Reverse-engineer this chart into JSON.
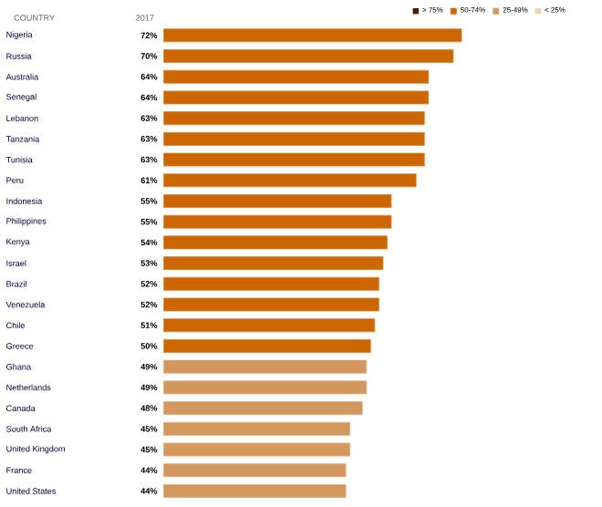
{
  "chart_data": {
    "type": "bar",
    "orientation": "horizontal",
    "ylabel": "COUNTRY",
    "xlabel": "2017",
    "categories": [
      "Nigeria",
      "Russia",
      "Australia",
      "Senegal",
      "Lebanon",
      "Tanzania",
      "Tunisia",
      "Peru",
      "Indonesia",
      "Philippines",
      "Kenya",
      "Israel",
      "Brazil",
      "Venezuela",
      "Chile",
      "Greece",
      "Ghana",
      "Netherlands",
      "Canada",
      "South Africa",
      "United Kingdom",
      "France",
      "United States"
    ],
    "tick_labels": "y",
    "legend": "top right",
    "series": [
      {
        "name": "> 75%",
        "color": "#4d1f00",
        "values": [
          null,
          null,
          null,
          null,
          null,
          null,
          null,
          null,
          null,
          null,
          null,
          null,
          null,
          null,
          null,
          null,
          null,
          null,
          null,
          null,
          null,
          null,
          null
        ],
        "value_labels": [
          null,
          null,
          null,
          null,
          null,
          null,
          null,
          null,
          null,
          null,
          null,
          null,
          null,
          null,
          null,
          null,
          null,
          null,
          null,
          null,
          null,
          null,
          null
        ]
      },
      {
        "name": "50-74%",
        "color": "#cc6600",
        "values": [
          72,
          70,
          64,
          64,
          63,
          63,
          63,
          61,
          55,
          55,
          54,
          53,
          52,
          52,
          51,
          50,
          null,
          null,
          null,
          null,
          null,
          null,
          null
        ],
        "value_labels": [
          "72%",
          "70%",
          "64%",
          "64%",
          "63%",
          "63%",
          "63%",
          "61%",
          "55%",
          "55%",
          "54%",
          "53%",
          "52%",
          "52%",
          "51%",
          "50%",
          null,
          null,
          null,
          null,
          null,
          null,
          null
        ]
      },
      {
        "name": "25-49%",
        "color": "#d4975e",
        "values": [
          null,
          null,
          null,
          null,
          null,
          null,
          null,
          null,
          null,
          null,
          null,
          null,
          null,
          null,
          null,
          null,
          49,
          49,
          48,
          45,
          45,
          44,
          44
        ],
        "value_labels": [
          null,
          null,
          null,
          null,
          null,
          null,
          null,
          null,
          null,
          null,
          null,
          null,
          null,
          null,
          null,
          null,
          "49%",
          "49%",
          "48%",
          "45%",
          "45%",
          "44%",
          "44%"
        ]
      },
      {
        "name": "< 25%",
        "color": "#f5d5a8",
        "values": [
          null,
          null,
          null,
          null,
          null,
          null,
          null,
          null,
          null,
          null,
          null,
          null,
          null,
          null,
          null,
          null,
          null,
          null,
          null,
          null,
          null,
          null,
          null
        ],
        "value_labels": [
          null,
          null,
          null,
          null,
          null,
          null,
          null,
          null,
          null,
          null,
          null,
          null,
          null,
          null,
          null,
          null,
          null,
          null,
          null,
          null,
          null,
          null,
          null
        ]
      }
    ]
  }
}
